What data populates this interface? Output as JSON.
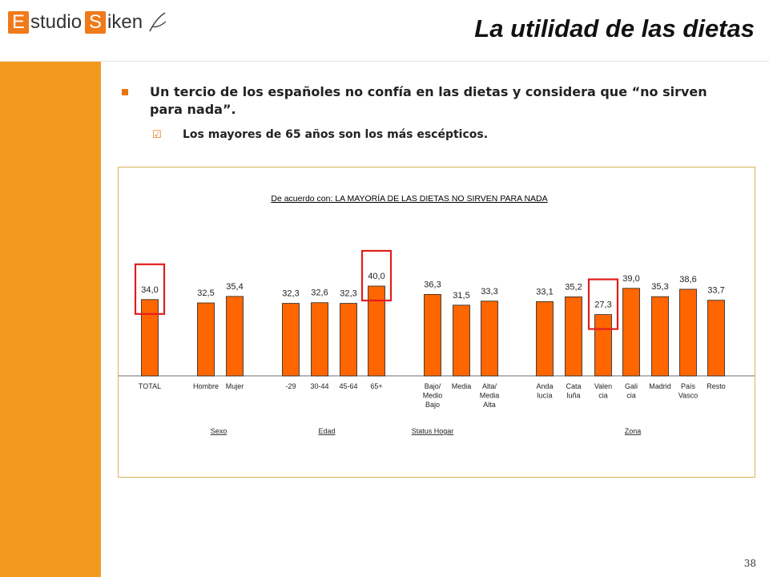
{
  "header": {
    "logo_letter_1": "E",
    "logo_text_1": "studio",
    "logo_letter_2": "S",
    "logo_text_2": "iken",
    "title": "La utilidad de las dietas"
  },
  "bullets": {
    "main": "Un tercio de los españoles no confía en las dietas y considera que “no sirven para nada”.",
    "sub": "Los mayores de 65 años son los más escépticos."
  },
  "page_number": "38",
  "colors": {
    "bar": "#ff6600",
    "sidebar": "#f39a1e",
    "highlight_box": "#e11d1d",
    "chart_border": "#d8b45a"
  },
  "icons": {
    "bullet": "orange-square-bullet-icon",
    "sub_bullet": "checkbox-icon"
  },
  "chart_data": {
    "type": "bar",
    "title": "De acuerdo con: LA MAYORÍA DE LAS DIETAS NO SIRVEN PARA NADA",
    "xlabel": "",
    "ylabel": "",
    "grid": false,
    "legend": "none",
    "categories": [
      "TOTAL",
      "Hombre",
      "Mujer",
      "-29",
      "30-44",
      "45-64",
      "65+",
      "Bajo/ Medio Bajo",
      "Media",
      "Alta/ Media Alta",
      "Anda lucía",
      "Cata luña",
      "Valen cia",
      "Gali cia",
      "Madrid",
      "País Vasco",
      "Resto"
    ],
    "category_lines": [
      [
        "TOTAL"
      ],
      [
        "Hombre"
      ],
      [
        "Mujer"
      ],
      [
        "-29"
      ],
      [
        "30-44"
      ],
      [
        "45-64"
      ],
      [
        "65+"
      ],
      [
        "Bajo/",
        "Medio",
        "Bajo"
      ],
      [
        "Media"
      ],
      [
        "Alta/",
        "Media",
        "Alta"
      ],
      [
        "Anda",
        "lucía"
      ],
      [
        "Cata",
        "luña"
      ],
      [
        "Valen",
        "cia"
      ],
      [
        "Gali",
        "cia"
      ],
      [
        "Madrid"
      ],
      [
        "País",
        "Vasco"
      ],
      [
        "Resto"
      ]
    ],
    "values": [
      34.0,
      32.5,
      35.4,
      32.3,
      32.6,
      32.3,
      40.0,
      36.3,
      31.5,
      33.3,
      33.1,
      35.2,
      27.3,
      39.0,
      35.3,
      38.6,
      33.7
    ],
    "value_labels": [
      "34,0",
      "32,5",
      "35,4",
      "32,3",
      "32,6",
      "32,3",
      "40,0",
      "36,3",
      "31,5",
      "33,3",
      "33,1",
      "35,2",
      "27,3",
      "39,0",
      "35,3",
      "38,6",
      "33,7"
    ],
    "groups": [
      {
        "label": "Sexo",
        "categories": [
          "Hombre",
          "Mujer"
        ]
      },
      {
        "label": "Edad",
        "categories": [
          "-29",
          "30-44",
          "45-64",
          "65+"
        ]
      },
      {
        "label": "Status Hogar",
        "categories": [
          "Bajo/ Medio Bajo",
          "Media",
          "Alta/ Media Alta"
        ]
      },
      {
        "label": "Zona",
        "categories": [
          "Anda lucía",
          "Cata luña",
          "Valen cia",
          "Gali cia",
          "Madrid",
          "País Vasco",
          "Resto"
        ]
      }
    ],
    "highlighted": [
      "TOTAL",
      "65+",
      "Valen cia"
    ]
  }
}
